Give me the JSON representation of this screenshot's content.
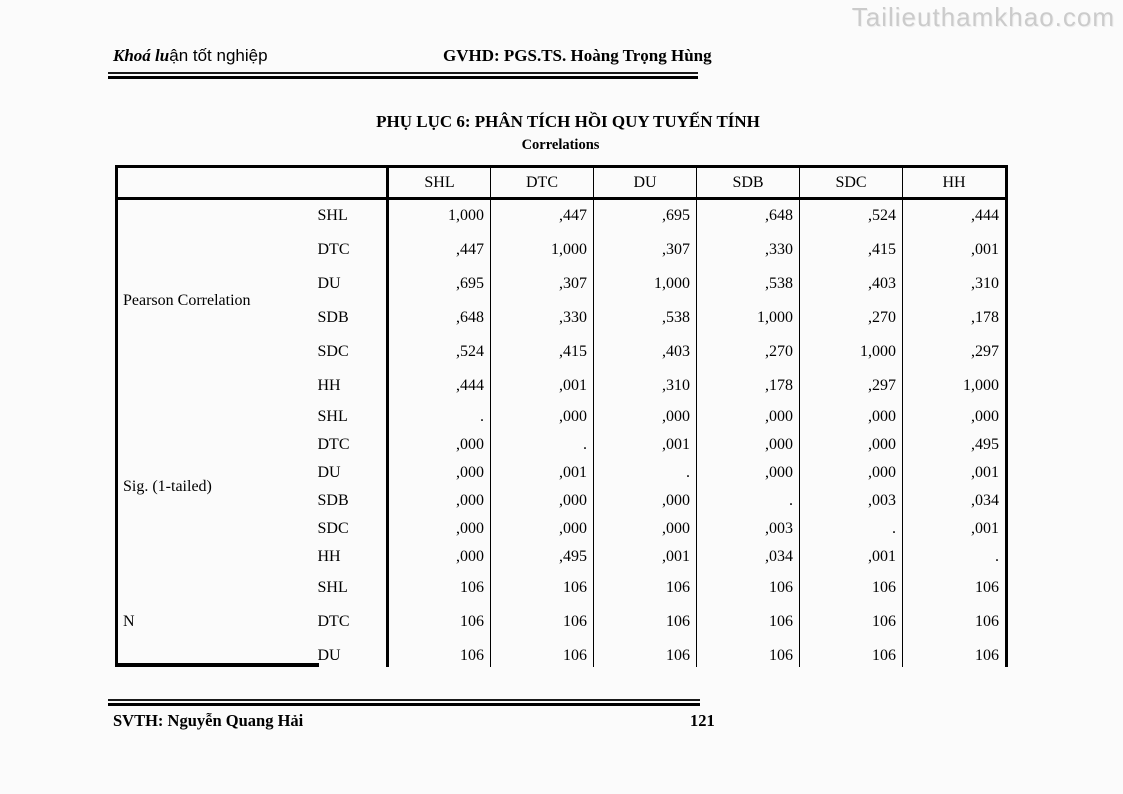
{
  "watermark": "Tailieuthamkhao.com",
  "colors": {
    "watermark": "#cbcbcb"
  },
  "header": {
    "left_italic": "Khoá lu",
    "left_rest": "ận tốt nghiệp",
    "right": "GVHD: PGS.TS. Hoàng Trọng Hùng"
  },
  "title": "PHỤ LỤC 6: PHÂN TÍCH HỒI QUY TUYẾN TÍNH",
  "table": {
    "title": "Correlations",
    "columns": [
      "SHL",
      "DTC",
      "DU",
      "SDB",
      "SDC",
      "HH"
    ],
    "sections": [
      {
        "label": "Pearson Correlation",
        "rows": [
          {
            "var": "SHL",
            "values": [
              "1,000",
              ",447",
              ",695",
              ",648",
              ",524",
              ",444"
            ]
          },
          {
            "var": "DTC",
            "values": [
              ",447",
              "1,000",
              ",307",
              ",330",
              ",415",
              ",001"
            ]
          },
          {
            "var": "DU",
            "values": [
              ",695",
              ",307",
              "1,000",
              ",538",
              ",403",
              ",310"
            ]
          },
          {
            "var": "SDB",
            "values": [
              ",648",
              ",330",
              ",538",
              "1,000",
              ",270",
              ",178"
            ]
          },
          {
            "var": "SDC",
            "values": [
              ",524",
              ",415",
              ",403",
              ",270",
              "1,000",
              ",297"
            ]
          },
          {
            "var": "HH",
            "values": [
              ",444",
              ",001",
              ",310",
              ",178",
              ",297",
              "1,000"
            ]
          }
        ]
      },
      {
        "label": "Sig. (1-tailed)",
        "rows": [
          {
            "var": "SHL",
            "values": [
              ".",
              ",000",
              ",000",
              ",000",
              ",000",
              ",000"
            ]
          },
          {
            "var": "DTC",
            "values": [
              ",000",
              ".",
              ",001",
              ",000",
              ",000",
              ",495"
            ]
          },
          {
            "var": "DU",
            "values": [
              ",000",
              ",001",
              ".",
              ",000",
              ",000",
              ",001"
            ]
          },
          {
            "var": "SDB",
            "values": [
              ",000",
              ",000",
              ",000",
              ".",
              ",003",
              ",034"
            ]
          },
          {
            "var": "SDC",
            "values": [
              ",000",
              ",000",
              ",000",
              ",003",
              ".",
              ",001"
            ]
          },
          {
            "var": "HH",
            "values": [
              ",000",
              ",495",
              ",001",
              ",034",
              ",001",
              "."
            ]
          }
        ]
      },
      {
        "label": "N",
        "rows": [
          {
            "var": "SHL",
            "values": [
              "106",
              "106",
              "106",
              "106",
              "106",
              "106"
            ]
          },
          {
            "var": "DTC",
            "values": [
              "106",
              "106",
              "106",
              "106",
              "106",
              "106"
            ]
          },
          {
            "var": "DU",
            "values": [
              "106",
              "106",
              "106",
              "106",
              "106",
              "106"
            ]
          }
        ]
      }
    ]
  },
  "footer": {
    "author": "SVTH: Nguyễn Quang Hải",
    "page_number": "121"
  }
}
